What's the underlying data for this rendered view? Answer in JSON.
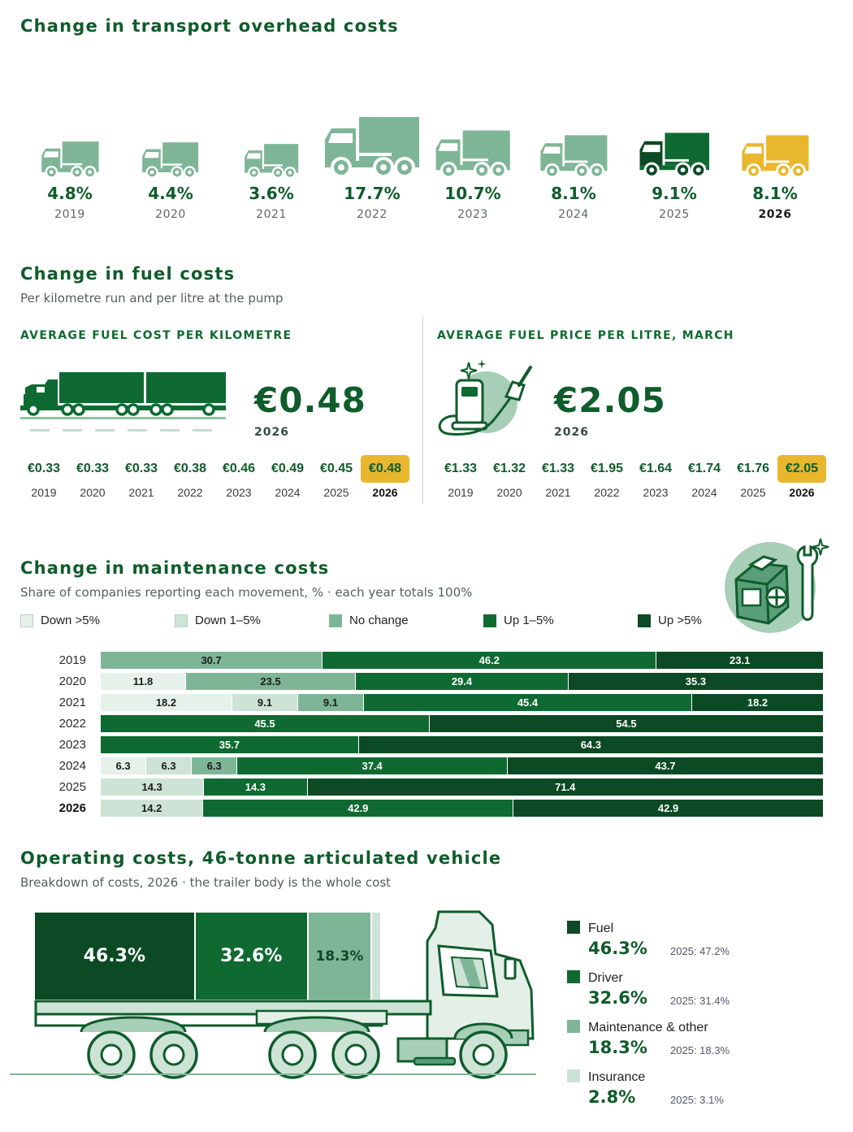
{
  "colors": {
    "dark_green": "#0b4a24",
    "green": "#0f6a32",
    "mid_green": "#7fb597",
    "light_green": "#cde3d5",
    "pale_green": "#e6f1ea",
    "yellow": "#e8b72e"
  },
  "overhead": {
    "title": "Change in transport overhead costs",
    "items": [
      {
        "year": "2019",
        "value": "4.8%",
        "icon": "truck-icon",
        "style": "light"
      },
      {
        "year": "2020",
        "value": "4.4%",
        "icon": "truck-icon",
        "style": "light"
      },
      {
        "year": "2021",
        "value": "3.6%",
        "icon": "truck-icon",
        "style": "light"
      },
      {
        "year": "2022",
        "value": "17.7%",
        "icon": "truck-icon",
        "style": "light"
      },
      {
        "year": "2023",
        "value": "10.7%",
        "icon": "truck-icon",
        "style": "light"
      },
      {
        "year": "2024",
        "value": "8.1%",
        "icon": "truck-icon",
        "style": "light"
      },
      {
        "year": "2025",
        "value": "9.1%",
        "icon": "truck-icon",
        "style": "dark"
      },
      {
        "year": "2026",
        "value": "8.1%",
        "icon": "truck-icon",
        "style": "yellow"
      }
    ]
  },
  "fuel": {
    "title": "Change in fuel costs",
    "subtitle": "Per kilometre run and per litre at the pump",
    "per_km": {
      "heading": "AVERAGE FUEL COST PER KILOMETRE",
      "big_value": "€0.48",
      "big_year": "2026",
      "icon": "road-train-icon",
      "years": [
        "2019",
        "2020",
        "2021",
        "2022",
        "2023",
        "2024",
        "2025",
        "2026"
      ],
      "labels": [
        "€0.33",
        "€0.33",
        "€0.33",
        "€0.38",
        "€0.46",
        "€0.49",
        "€0.45",
        "€0.48"
      ]
    },
    "per_litre": {
      "heading": "AVERAGE FUEL PRICE PER LITRE, MARCH",
      "big_value": "€2.05",
      "big_year": "2026",
      "icon": "fuel-pump-icon",
      "years": [
        "2019",
        "2020",
        "2021",
        "2022",
        "2023",
        "2024",
        "2025",
        "2026"
      ],
      "labels": [
        "€1.33",
        "€1.32",
        "€1.33",
        "€1.95",
        "€1.64",
        "€1.74",
        "€1.76",
        "€2.05"
      ]
    }
  },
  "maintenance": {
    "title": "Change in maintenance costs",
    "subtitle": "Share of companies reporting each movement, % · each year totals 100%",
    "icon": "engine-wrench-icon",
    "legend": [
      "Down >5%",
      "Down 1–5%",
      "No change",
      "Up 1–5%",
      "Up >5%"
    ]
  },
  "operating": {
    "title": "Operating costs, 46-tonne articulated vehicle",
    "subtitle": "Breakdown of costs, 2026 · the trailer body is the whole cost",
    "icon": "articulated-truck-icon",
    "items": [
      {
        "name": "Fuel",
        "pct": "46.3%",
        "prev": "2025: 47.2%"
      },
      {
        "name": "Driver",
        "pct": "32.6%",
        "prev": "2025: 31.4%"
      },
      {
        "name": "Maintenance & other",
        "pct": "18.3%",
        "prev": "2025: 18.3%"
      },
      {
        "name": "Insurance",
        "pct": "2.8%",
        "prev": "2025: 3.1%"
      }
    ]
  },
  "chart_data": [
    {
      "type": "bar",
      "title": "Change in transport overhead costs",
      "categories": [
        "2019",
        "2020",
        "2021",
        "2022",
        "2023",
        "2024",
        "2025",
        "2026"
      ],
      "values": [
        4.8,
        4.4,
        3.6,
        17.7,
        10.7,
        8.1,
        9.1,
        8.1
      ],
      "unit": "%"
    },
    {
      "type": "table",
      "title": "AVERAGE FUEL COST PER KILOMETRE",
      "categories": [
        "2019",
        "2020",
        "2021",
        "2022",
        "2023",
        "2024",
        "2025",
        "2026"
      ],
      "values": [
        0.33,
        0.33,
        0.33,
        0.38,
        0.46,
        0.49,
        0.45,
        0.48
      ],
      "unit": "€"
    },
    {
      "type": "table",
      "title": "AVERAGE FUEL PRICE PER LITRE, MARCH",
      "categories": [
        "2019",
        "2020",
        "2021",
        "2022",
        "2023",
        "2024",
        "2025",
        "2026"
      ],
      "values": [
        1.33,
        1.32,
        1.33,
        1.95,
        1.64,
        1.74,
        1.76,
        2.05
      ],
      "unit": "€"
    },
    {
      "type": "bar",
      "orientation": "horizontal",
      "stacked": true,
      "title": "Change in maintenance costs",
      "categories": [
        "2019",
        "2020",
        "2021",
        "2022",
        "2023",
        "2024",
        "2025",
        "2026"
      ],
      "series": [
        {
          "name": "Down >5%",
          "color": "#e6f1ea",
          "values": [
            0,
            11.8,
            18.2,
            0,
            0,
            6.3,
            0,
            0
          ]
        },
        {
          "name": "Down 1–5%",
          "color": "#cde3d5",
          "values": [
            0,
            0,
            9.1,
            0,
            0,
            6.3,
            14.3,
            14.2
          ]
        },
        {
          "name": "No change",
          "color": "#7fb597",
          "values": [
            30.7,
            23.5,
            9.1,
            0,
            0,
            6.3,
            0,
            0
          ]
        },
        {
          "name": "Up 1–5%",
          "color": "#0f6a32",
          "values": [
            46.2,
            29.4,
            45.4,
            45.5,
            35.7,
            37.4,
            14.3,
            42.9
          ]
        },
        {
          "name": "Up >5%",
          "color": "#0b4a24",
          "values": [
            23.1,
            35.3,
            18.2,
            54.5,
            64.3,
            43.7,
            71.4,
            42.9
          ]
        }
      ],
      "xlim": [
        0,
        100
      ],
      "legend": "top"
    },
    {
      "type": "bar",
      "stacked": true,
      "title": "Operating costs, 46-tonne articulated vehicle",
      "categories": [
        "Fuel",
        "Driver",
        "Maintenance & other",
        "Insurance"
      ],
      "values": [
        46.3,
        32.6,
        18.3,
        2.8
      ],
      "previous": [
        47.2,
        31.4,
        18.3,
        3.1
      ],
      "unit": "%"
    }
  ]
}
